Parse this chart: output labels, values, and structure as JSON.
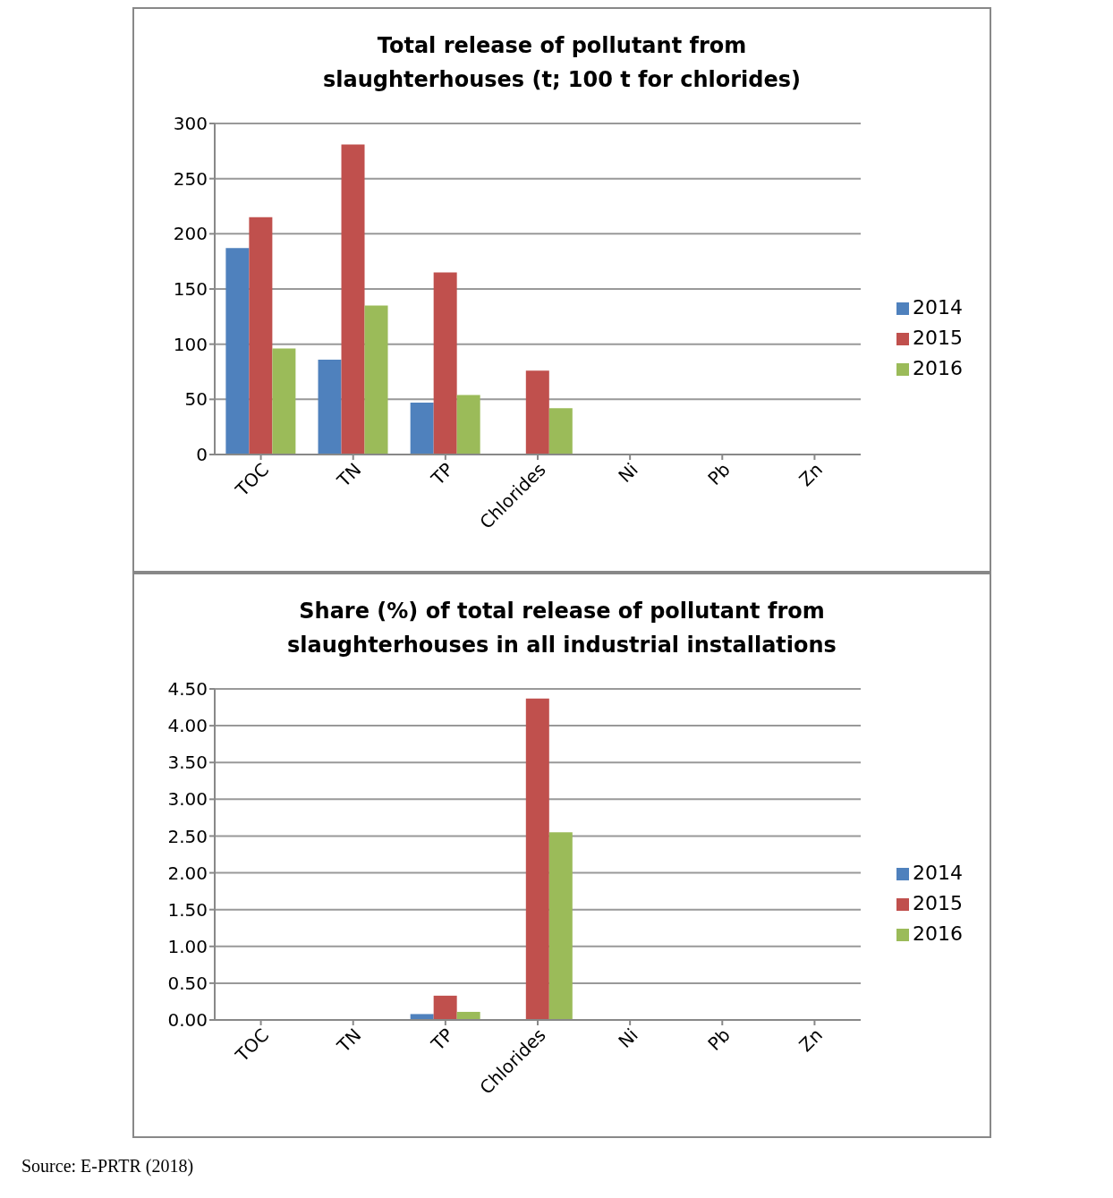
{
  "chart_data": [
    {
      "type": "bar",
      "title": "Total release of pollutant from slaughterhouses (t; 100 t for chlorides)",
      "categories": [
        "TOC",
        "TN",
        "TP",
        "Chlorides",
        "Ni",
        "Pb",
        "Zn"
      ],
      "series": [
        {
          "name": "2014",
          "color": "#4f81bd",
          "values": [
            187,
            86,
            47,
            0,
            0,
            0,
            0
          ]
        },
        {
          "name": "2015",
          "color": "#c0504d",
          "values": [
            215,
            281,
            165,
            76,
            0,
            0,
            0
          ]
        },
        {
          "name": "2016",
          "color": "#9bbb59",
          "values": [
            96,
            135,
            54,
            42,
            0,
            0,
            0
          ]
        }
      ],
      "ylim": [
        0,
        300
      ],
      "yticks": [
        0,
        50,
        100,
        150,
        200,
        250,
        300
      ],
      "grid": "y",
      "legend": "right"
    },
    {
      "type": "bar",
      "title": "Share (%) of total release of pollutant from slaughterhouses in all industrial installations",
      "categories": [
        "TOC",
        "TN",
        "TP",
        "Chlorides",
        "Ni",
        "Pb",
        "Zn"
      ],
      "series": [
        {
          "name": "2014",
          "color": "#4f81bd",
          "values": [
            0,
            0,
            0.08,
            0,
            0,
            0,
            0
          ]
        },
        {
          "name": "2015",
          "color": "#c0504d",
          "values": [
            0,
            0,
            0.33,
            4.37,
            0,
            0,
            0
          ]
        },
        {
          "name": "2016",
          "color": "#9bbb59",
          "values": [
            0,
            0,
            0.11,
            2.55,
            0,
            0,
            0
          ]
        }
      ],
      "ylim": [
        0,
        4.5
      ],
      "yticks": [
        {
          "value": 0,
          "label": "0.00"
        },
        {
          "value": 0.5,
          "label": "0.50"
        },
        {
          "value": 1,
          "label": "1.00"
        },
        {
          "value": 1.5,
          "label": "1.50"
        },
        {
          "value": 2,
          "label": "2.00"
        },
        {
          "value": 2.5,
          "label": "2.50"
        },
        {
          "value": 3,
          "label": "3.00"
        },
        {
          "value": 3.5,
          "label": "3.50"
        },
        {
          "value": 4,
          "label": "4.00"
        },
        {
          "value": 4.5,
          "label": "4.50"
        }
      ],
      "grid": "y",
      "legend": "right",
      "annotations": [
        "Source: E-PRTR (2018)"
      ]
    }
  ]
}
